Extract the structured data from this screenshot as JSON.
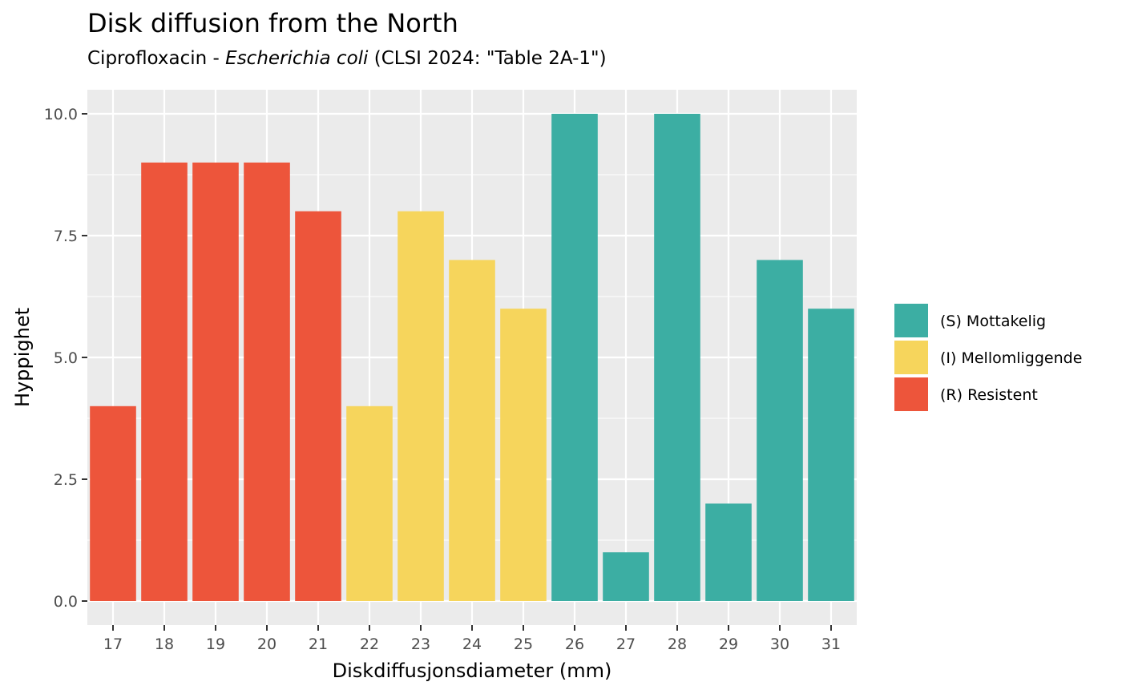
{
  "chart_data": {
    "type": "bar",
    "title": "Disk diffusion from the North",
    "subtitle": {
      "prefix": "Ciprofloxacin - ",
      "organism": "Escherichia coli",
      "suffix": " (CLSI 2024: \"Table 2A-1\")"
    },
    "xlabel": "Diskdiffusjonsdiameter (mm)",
    "ylabel": "Hyppighet",
    "ylim": [
      0,
      10
    ],
    "yticks": [
      0,
      2.5,
      5,
      7.5,
      10
    ],
    "ytick_labels": [
      "0.0",
      "2.5",
      "5.0",
      "7.5",
      "10.0"
    ],
    "categories": [
      "17",
      "18",
      "19",
      "20",
      "21",
      "22",
      "23",
      "24",
      "25",
      "26",
      "27",
      "28",
      "29",
      "30",
      "31"
    ],
    "values": [
      4,
      9,
      9,
      9,
      8,
      4,
      8,
      7,
      6,
      10,
      1,
      10,
      2,
      7,
      6
    ],
    "bar_groups": [
      "R",
      "R",
      "R",
      "R",
      "R",
      "I",
      "I",
      "I",
      "I",
      "S",
      "S",
      "S",
      "S",
      "S",
      "S"
    ],
    "grid": true,
    "legend_position": "right",
    "legend": [
      {
        "key": "S",
        "label": "(S) Mottakelig",
        "color": "#3CAEA3"
      },
      {
        "key": "I",
        "label": "(I) Mellomliggende",
        "color": "#F6D55C"
      },
      {
        "key": "R",
        "label": "(R) Resistent",
        "color": "#ED553B"
      }
    ],
    "panel_background": "#EBEBEB",
    "grid_color": "#FFFFFF"
  }
}
